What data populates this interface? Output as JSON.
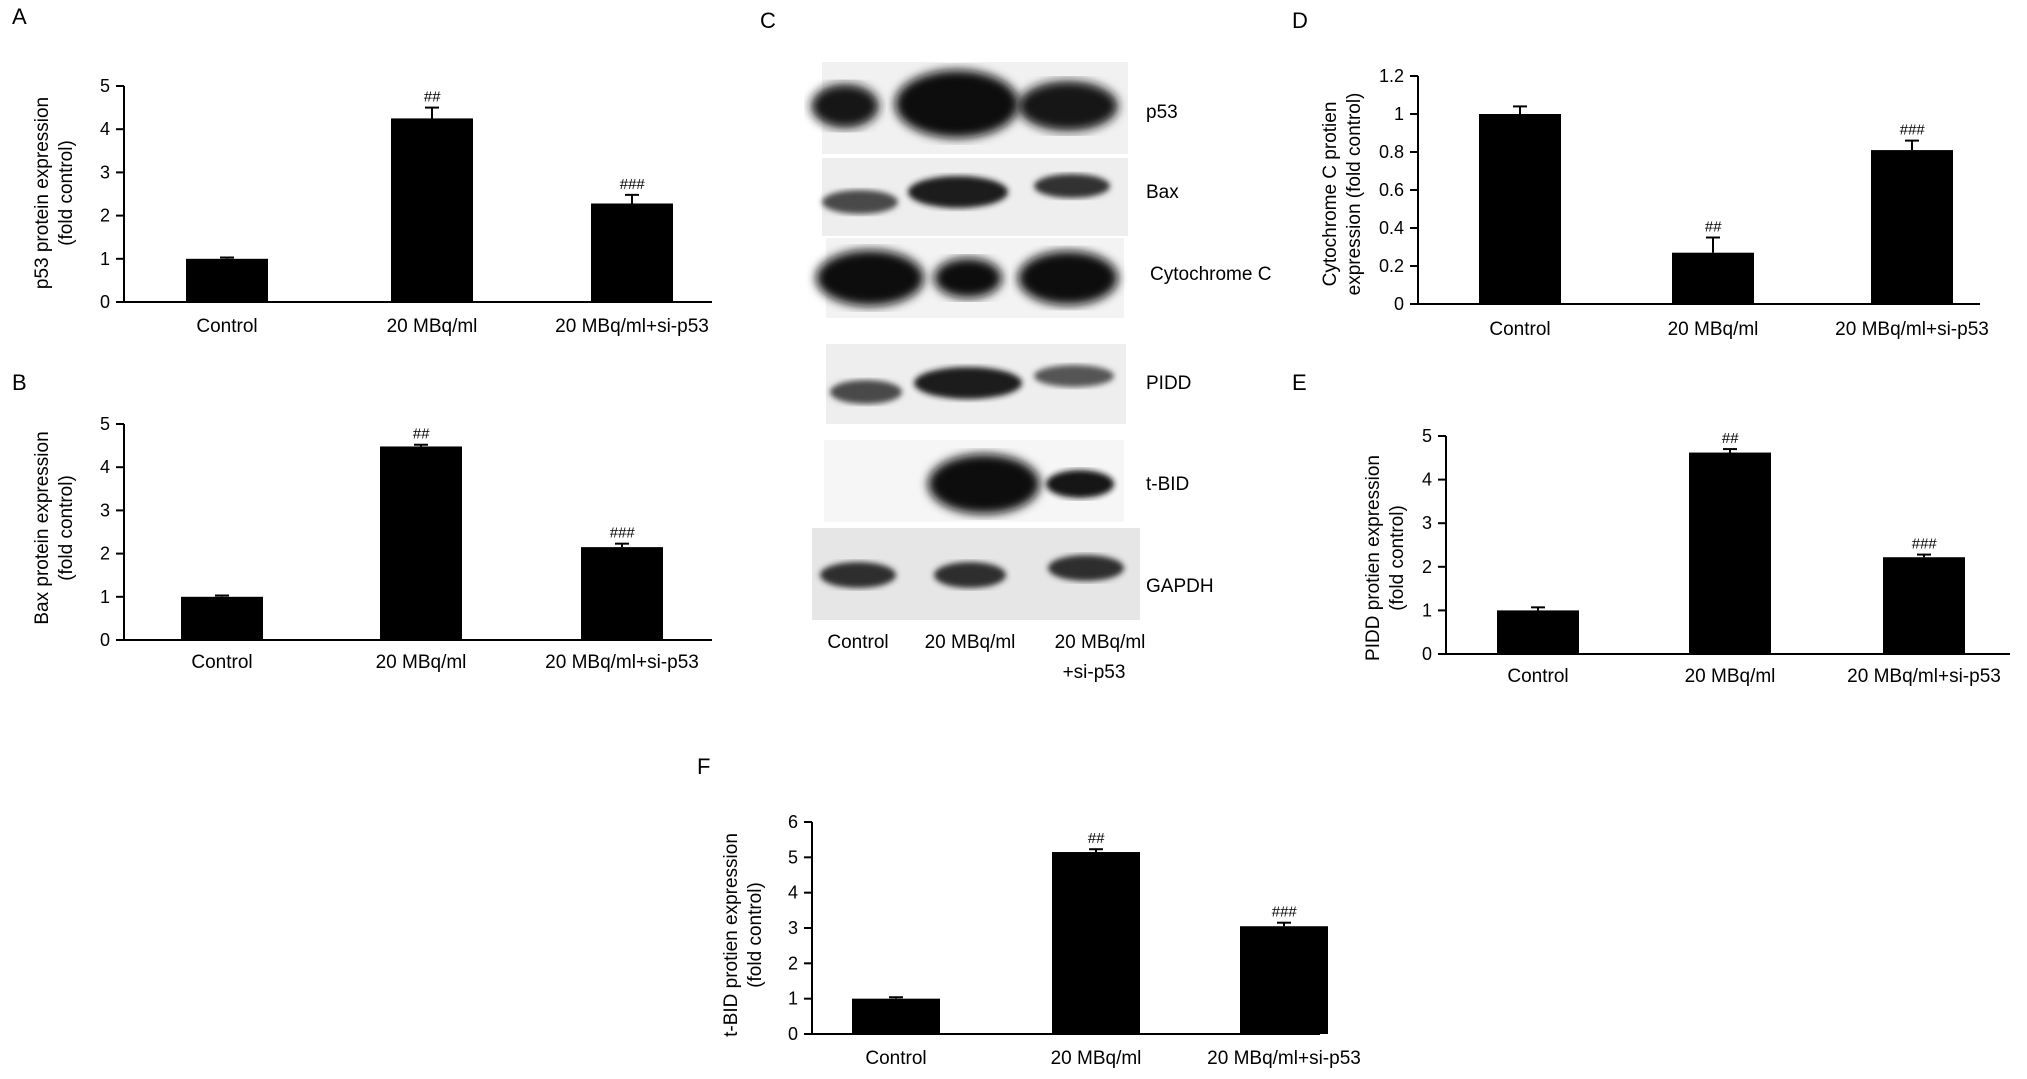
{
  "figure": {
    "panels": [
      {
        "letter": "A",
        "ylabel": [
          "p53 protein expression",
          "(fold control)"
        ]
      },
      {
        "letter": "B",
        "ylabel": [
          "Bax protein expression",
          "(fold control)"
        ]
      },
      {
        "letter": "C"
      },
      {
        "letter": "D",
        "ylabel": [
          "Cytochrome C protien",
          "expression (fold control)"
        ]
      },
      {
        "letter": "E",
        "ylabel": [
          "PIDD protien expression",
          "(fold control)"
        ]
      },
      {
        "letter": "F",
        "ylabel": [
          "t-BID protien expression",
          "(fold control)"
        ]
      }
    ],
    "blot": {
      "bands": [
        "p53",
        "Bax",
        "Cytochrome C",
        "PIDD",
        "t-BID",
        "GAPDH"
      ],
      "lanes": [
        "Control",
        "20 MBq/ml",
        "20 MBq/ml",
        "+si-p53"
      ]
    }
  },
  "chart_data": [
    {
      "type": "bar",
      "panel": "A",
      "categories": [
        "Control",
        "20 MBq/ml",
        "20 MBq/ml+si-p53"
      ],
      "values": [
        1.0,
        4.25,
        2.28
      ],
      "errors": [
        0.03,
        0.25,
        0.2
      ],
      "annotations": [
        "",
        "##",
        "###"
      ],
      "ylim": [
        0,
        5
      ],
      "yticks": [
        0,
        1,
        2,
        3,
        4,
        5
      ],
      "ylabel": "p53 protein expression (fold control)"
    },
    {
      "type": "bar",
      "panel": "B",
      "categories": [
        "Control",
        "20 MBq/ml",
        "20 MBq/ml+si-p53"
      ],
      "values": [
        1.0,
        4.48,
        2.15
      ],
      "errors": [
        0.03,
        0.04,
        0.08
      ],
      "annotations": [
        "",
        "##",
        "###"
      ],
      "ylim": [
        0,
        5
      ],
      "yticks": [
        0,
        1,
        2,
        3,
        4,
        5
      ],
      "ylabel": "Bax protein expression (fold control)"
    },
    {
      "type": "bar",
      "panel": "D",
      "categories": [
        "Control",
        "20 MBq/ml",
        "20 MBq/ml+si-p53"
      ],
      "values": [
        1.0,
        0.27,
        0.81
      ],
      "errors": [
        0.04,
        0.08,
        0.05
      ],
      "annotations": [
        "",
        "##",
        "###"
      ],
      "ylim": [
        0,
        1.2
      ],
      "yticks": [
        0,
        0.2,
        0.4,
        0.6,
        0.8,
        1,
        1.2
      ],
      "ylabel": "Cytochrome C protien expression (fold control)"
    },
    {
      "type": "bar",
      "panel": "E",
      "categories": [
        "Control",
        "20 MBq/ml",
        "20 MBq/ml+si-p53"
      ],
      "values": [
        1.0,
        4.62,
        2.22
      ],
      "errors": [
        0.07,
        0.08,
        0.06
      ],
      "annotations": [
        "",
        "##",
        "###"
      ],
      "ylim": [
        0,
        5
      ],
      "yticks": [
        0,
        1,
        2,
        3,
        4,
        5
      ],
      "ylabel": "PIDD protien expression (fold control)"
    },
    {
      "type": "bar",
      "panel": "F",
      "categories": [
        "Control",
        "20 MBq/ml",
        "20 MBq/ml+si-p53"
      ],
      "values": [
        1.0,
        5.15,
        3.05
      ],
      "errors": [
        0.04,
        0.08,
        0.1
      ],
      "annotations": [
        "",
        "##",
        "###"
      ],
      "ylim": [
        0,
        6
      ],
      "yticks": [
        0,
        1,
        2,
        3,
        4,
        5,
        6
      ],
      "ylabel": "t-BID protien expression (fold control)"
    }
  ]
}
